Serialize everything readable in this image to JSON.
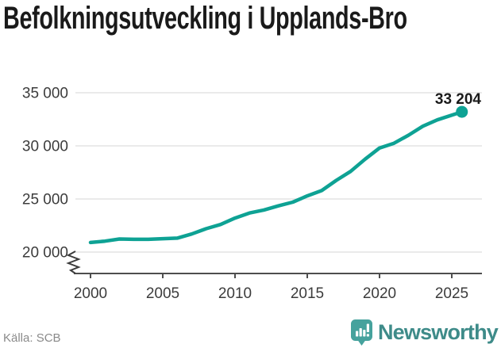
{
  "title": "Befolkningsutveckling i Upplands-Bro",
  "chart_data": {
    "type": "line",
    "title": "Befolkningsutveckling i Upplands-Bro",
    "x": [
      2000,
      2001,
      2002,
      2003,
      2004,
      2005,
      2006,
      2007,
      2008,
      2009,
      2010,
      2011,
      2012,
      2013,
      2014,
      2015,
      2016,
      2017,
      2018,
      2019,
      2020,
      2021,
      2022,
      2023,
      2024,
      2025
    ],
    "values": [
      20900,
      21030,
      21230,
      21200,
      21200,
      21260,
      21310,
      21700,
      22200,
      22600,
      23200,
      23680,
      23960,
      24350,
      24700,
      25290,
      25790,
      26750,
      27600,
      28750,
      29800,
      30250,
      31000,
      31850,
      32450,
      33204
    ],
    "last_value_label": "33 204",
    "last_point_x": 2025.7,
    "xticks": [
      2000,
      2005,
      2010,
      2015,
      2020,
      2025
    ],
    "xtick_labels": [
      "2000",
      "2005",
      "2010",
      "2015",
      "2020",
      "2025"
    ],
    "yticks": [
      20000,
      25000,
      30000,
      35000
    ],
    "ytick_labels": [
      "20 000",
      "25 000",
      "30 000",
      "35 000"
    ],
    "ylim": [
      20000,
      35000
    ],
    "xlim": [
      2000,
      2027
    ],
    "axis_break": true,
    "grid": "horizontal",
    "legend": "none",
    "line_color": "#0ea294",
    "grid_color": "#e3e3e3",
    "axis_color": "#4d4d4d",
    "tick_label_color": "#3c3c3c",
    "annotation_color": "#1a1a1a"
  },
  "footer": {
    "source": "Källa: SCB",
    "brand": "Newsworthy",
    "brand_color": "#3e8b89",
    "icon_color": "#46a29d"
  }
}
